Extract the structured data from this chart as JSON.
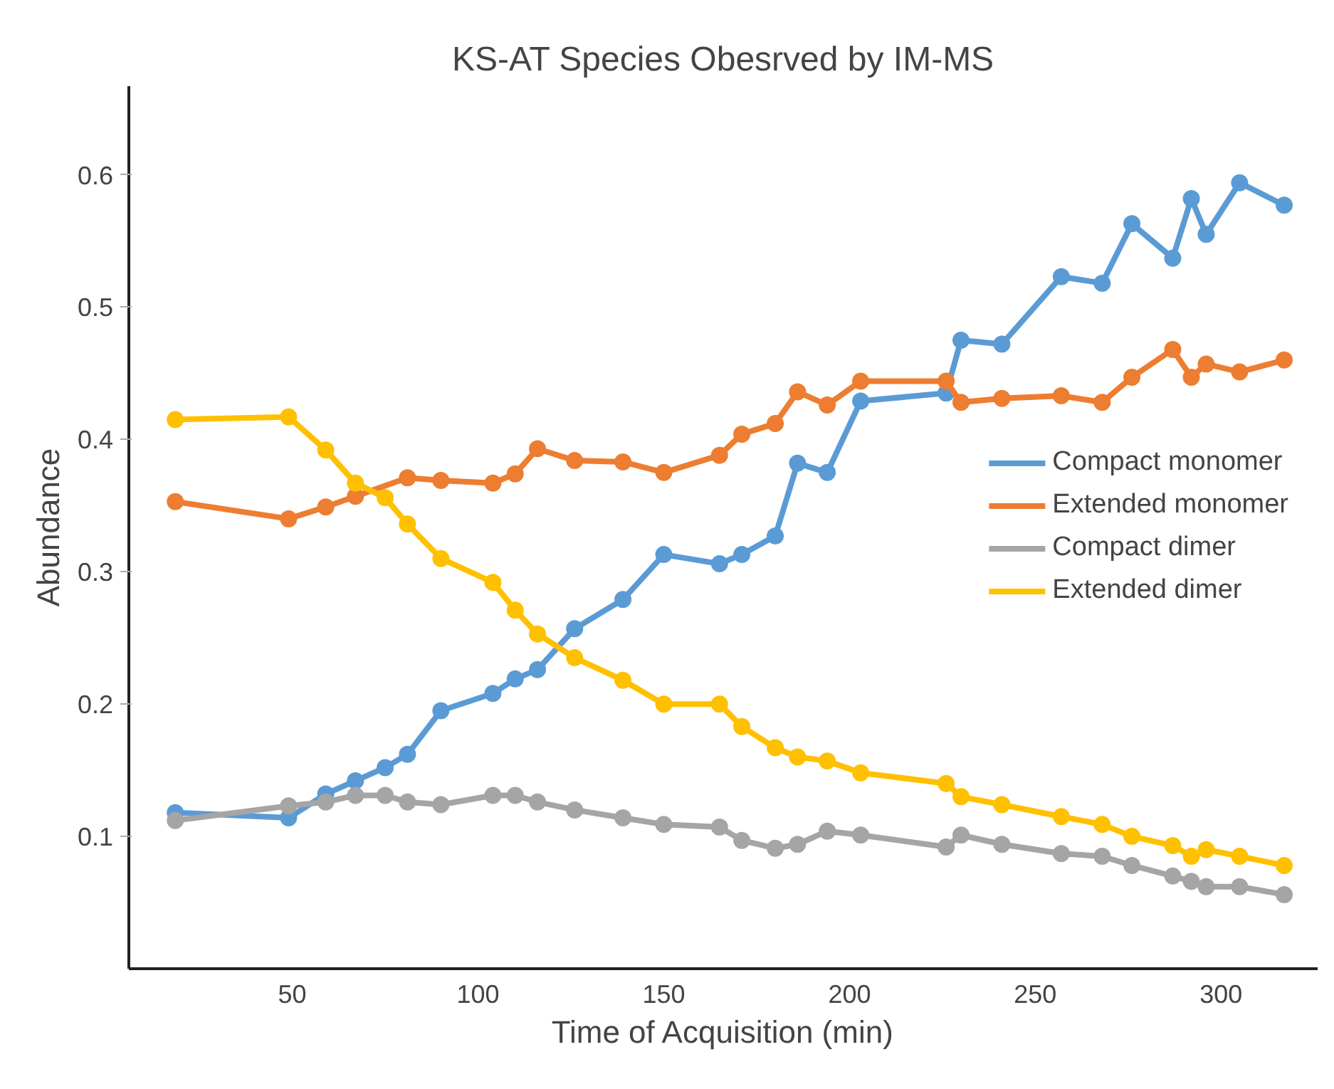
{
  "chart_data": {
    "type": "line",
    "title": "KS-AT Species Obesrved by IM-MS",
    "xlabel": "Time of Acquisition (min)",
    "ylabel": "Abundance",
    "x": [
      18.5,
      49,
      59,
      67,
      75,
      81,
      90,
      104,
      110,
      116,
      126,
      139,
      150,
      165,
      171,
      180,
      186,
      194,
      203,
      226,
      230,
      241,
      257,
      268,
      276,
      287,
      292,
      296,
      305,
      317
    ],
    "xlim": [
      6,
      326
    ],
    "ylim": [
      0,
      0.667
    ],
    "xticks": [
      50,
      100,
      150,
      200,
      250,
      300
    ],
    "yticks": [
      0.1,
      0.2,
      0.3,
      0.4,
      0.5,
      0.6
    ],
    "grid": false,
    "legend": "right",
    "marker": "circle",
    "line_style": "solid",
    "series": [
      {
        "name": "Compact monomer",
        "color": "#5b9bd5",
        "values": [
          0.118,
          0.114,
          0.132,
          0.142,
          0.152,
          0.162,
          0.195,
          0.208,
          0.219,
          0.226,
          0.257,
          0.279,
          0.313,
          0.306,
          0.313,
          0.327,
          0.382,
          0.375,
          0.429,
          0.435,
          0.475,
          0.472,
          0.523,
          0.518,
          0.563,
          0.537,
          0.582,
          0.555,
          0.594,
          0.577
        ]
      },
      {
        "name": "Extended monomer",
        "color": "#ed7d31",
        "x": [
          18.5,
          49,
          59,
          67,
          81,
          90,
          104,
          110,
          116,
          126,
          139,
          150,
          165,
          171,
          180,
          186,
          194,
          203,
          226,
          230,
          241,
          257,
          268,
          276,
          287,
          292,
          296,
          305,
          317
        ],
        "values": [
          0.353,
          0.34,
          0.349,
          0.357,
          0.371,
          0.369,
          0.367,
          0.374,
          0.393,
          0.384,
          0.383,
          0.375,
          0.388,
          0.404,
          0.412,
          0.436,
          0.426,
          0.444,
          0.444,
          0.428,
          0.431,
          0.433,
          0.428,
          0.447,
          0.468,
          0.447,
          0.457,
          0.451,
          0.46
        ]
      },
      {
        "name": "Compact dimer",
        "color": "#a5a5a5",
        "values": [
          0.112,
          0.123,
          0.126,
          0.131,
          0.131,
          0.126,
          0.124,
          0.131,
          0.131,
          0.126,
          0.12,
          0.114,
          0.109,
          0.107,
          0.097,
          0.091,
          0.094,
          0.104,
          0.101,
          0.092,
          0.101,
          0.094,
          0.087,
          0.085,
          0.078,
          0.07,
          0.066,
          0.062,
          0.062,
          0.056
        ]
      },
      {
        "name": "Extended dimer",
        "color": "#ffc000",
        "values": [
          0.415,
          0.417,
          0.392,
          0.367,
          0.356,
          0.336,
          0.31,
          0.292,
          0.271,
          0.253,
          0.235,
          0.218,
          0.2,
          0.2,
          0.183,
          0.167,
          0.16,
          0.157,
          0.148,
          0.14,
          0.13,
          0.124,
          0.115,
          0.109,
          0.1,
          0.093,
          0.085,
          0.09,
          0.085,
          0.078
        ]
      }
    ]
  }
}
